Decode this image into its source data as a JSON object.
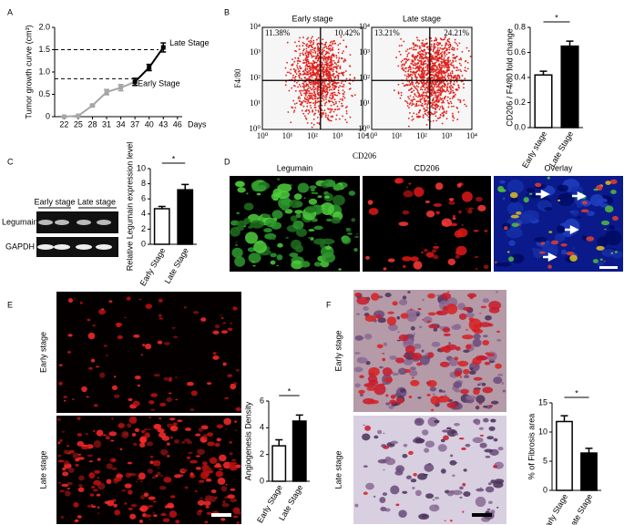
{
  "panel_labels": [
    "A",
    "B",
    "C",
    "D",
    "E",
    "F"
  ],
  "chart_data": [
    {
      "type": "line",
      "y_label": "Tumor growth curve (cm³)",
      "x_label": "Days",
      "xlim": [
        20,
        47
      ],
      "xticks": [
        22,
        25,
        28,
        31,
        34,
        37,
        40,
        43,
        46
      ],
      "ylim": [
        0,
        2
      ],
      "yticks": [
        0,
        0.5,
        {
          "value": 1,
          "label": "1.0"
        },
        1.5,
        {
          "value": 2,
          "label": "2.0"
        }
      ],
      "series": [
        {
          "color": "#a6a6a6",
          "x": [
            22,
            25,
            28,
            31,
            34,
            37
          ],
          "values": [
            0,
            0.02,
            0.25,
            0.55,
            0.65,
            0.78
          ],
          "errors": [
            0,
            0,
            0.02,
            0.06,
            0.07,
            0.08
          ]
        },
        {
          "color": "#000000",
          "x": [
            37,
            40,
            43
          ],
          "values": [
            0.78,
            1.1,
            1.55
          ],
          "errors": [
            0.08,
            0.07,
            0.1
          ]
        }
      ],
      "reference_lines": [
        {
          "value": 1.5,
          "label": "Late Stage"
        },
        {
          "value": 0.85,
          "label": "Early Stage"
        }
      ]
    },
    {
      "type": "bar",
      "y_label": "CD206 / F4/80 fold change",
      "categories": [
        "Early stage",
        "Late Stage"
      ],
      "values": [
        0.42,
        0.65
      ],
      "errors": [
        0.03,
        0.04
      ],
      "colors": [
        "#ffffff",
        "#000000"
      ],
      "ylim": [
        0,
        0.8
      ],
      "yticks": [
        {
          "value": 0,
          "label": "0.0"
        },
        0.2,
        0.4,
        0.6,
        0.8
      ],
      "annotation": "*"
    },
    {
      "type": "bar",
      "y_label": "Relative Legumain expression level",
      "categories": [
        "Early Stage",
        "Late Stage"
      ],
      "values": [
        4.7,
        7.2
      ],
      "errors": [
        0.3,
        0.7
      ],
      "colors": [
        "#ffffff",
        "#000000"
      ],
      "ylim": [
        0,
        10
      ],
      "yticks": [
        0,
        2,
        4,
        6,
        8,
        10
      ],
      "annotation": "*"
    },
    {
      "type": "bar",
      "y_label": "Angiogenesis Density",
      "categories": [
        "Early Stage",
        "Late Stage"
      ],
      "values": [
        2.65,
        4.5
      ],
      "errors": [
        0.45,
        0.45
      ],
      "colors": [
        "#ffffff",
        "#000000"
      ],
      "ylim": [
        0,
        6
      ],
      "yticks": [
        0,
        2,
        4,
        6
      ],
      "annotation": "*"
    },
    {
      "type": "bar",
      "y_label": "% of Fibrosis area",
      "categories": [
        "Early Stage",
        "Late Stage"
      ],
      "values": [
        11.8,
        6.4
      ],
      "errors": [
        1,
        0.8
      ],
      "colors": [
        "#ffffff",
        "#000000"
      ],
      "ylim": [
        0,
        15
      ],
      "yticks": [
        0,
        5,
        10,
        15
      ],
      "annotation": "*"
    }
  ],
  "flow_cytometry": {
    "x_label": "CD206",
    "y_label": "F4/80",
    "tick_labels": [
      "10⁰",
      "10¹",
      "10²",
      "10³",
      "10⁴"
    ],
    "plots": [
      {
        "title": "Early stage",
        "quadrants": [
          "11.38%",
          "10.42%"
        ]
      },
      {
        "title": "Late stage",
        "quadrants": [
          "13.21%",
          "24.21%"
        ]
      }
    ]
  },
  "gel": {
    "groups": [
      "Early stage",
      "Late stage"
    ],
    "rows": [
      "Legumain",
      "GAPDH"
    ]
  },
  "immunofluorescence": {
    "titles": [
      "Legumain",
      "CD206",
      "Overlay"
    ]
  },
  "angiogenesis_images": {
    "rows": [
      "Early stage",
      "Late stage"
    ]
  },
  "fibrosis_images": {
    "rows": [
      "Early stage",
      "Late stage"
    ]
  }
}
